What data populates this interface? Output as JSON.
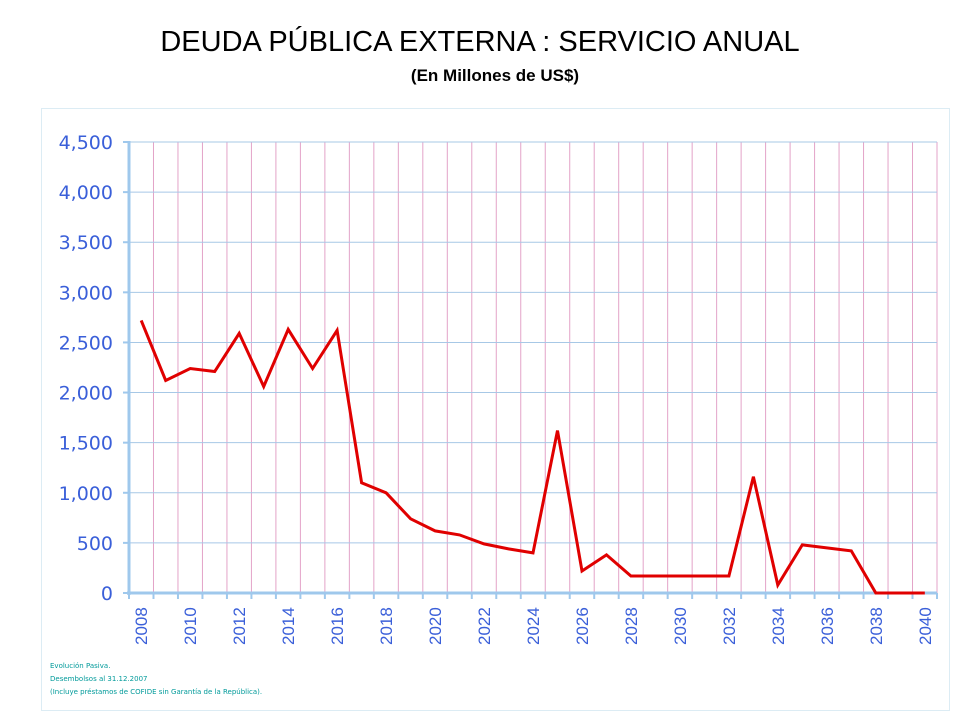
{
  "chart_data": {
    "type": "line",
    "title": "DEUDA PÚBLICA EXTERNA : SERVICIO ANUAL",
    "subtitle": "(En Millones de US$)",
    "xlabel": "",
    "ylabel": "",
    "ylim": [
      0,
      4500
    ],
    "yticks": [
      0,
      500,
      1000,
      1500,
      2000,
      2500,
      3000,
      3500,
      4000,
      4500
    ],
    "ytick_labels": [
      "0",
      "500",
      "1,000",
      "1,500",
      "2,000",
      "2,500",
      "3,000",
      "3,500",
      "4,000",
      "4,500"
    ],
    "x": [
      2008,
      2009,
      2010,
      2011,
      2012,
      2013,
      2014,
      2015,
      2016,
      2017,
      2018,
      2019,
      2020,
      2021,
      2022,
      2023,
      2024,
      2025,
      2026,
      2027,
      2028,
      2029,
      2030,
      2031,
      2032,
      2033,
      2034,
      2035,
      2036,
      2037,
      2038,
      2039,
      2040
    ],
    "xtick_labels": [
      "2008",
      "2010",
      "2012",
      "2014",
      "2016",
      "2018",
      "2020",
      "2022",
      "2024",
      "2026",
      "2028",
      "2030",
      "2032",
      "2034",
      "2036",
      "2038",
      "2040"
    ],
    "series": [
      {
        "name": "Servicio anual",
        "color": "#e00000",
        "values": [
          2720,
          2120,
          2240,
          2210,
          2590,
          2060,
          2630,
          2240,
          2620,
          1100,
          1000,
          740,
          620,
          580,
          490,
          440,
          400,
          1620,
          220,
          380,
          170,
          170,
          170,
          170,
          170,
          1160,
          80,
          480,
          450,
          420,
          0,
          0,
          0
        ]
      }
    ],
    "grid": true,
    "legend": "none",
    "colors": {
      "axis": "#9fc8ec",
      "hgrid": "#a7c8e6",
      "vgrid": "#e3a3c8",
      "tick_label": "#3a5fd9",
      "line": "#e00000"
    }
  },
  "notes": [
    "Evolución Pasiva.",
    "Desembolsos al 31.12.2007",
    " (Incluye préstamos de COFIDE sin Garantía de la República)."
  ]
}
